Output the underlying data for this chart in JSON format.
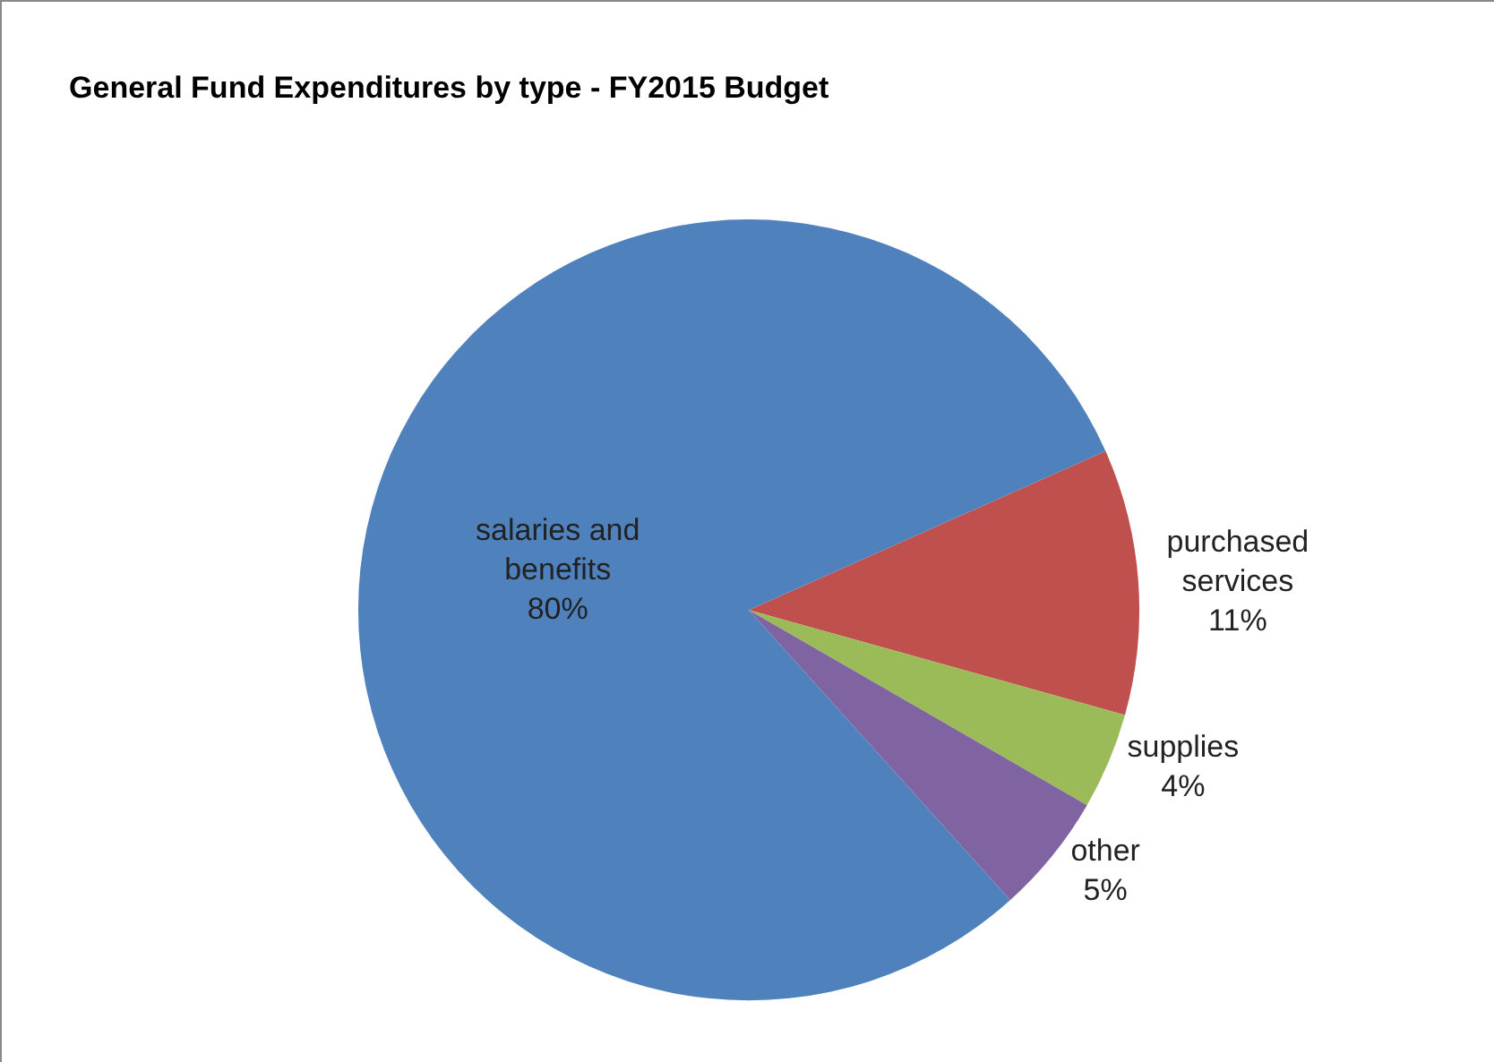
{
  "chart_data": {
    "type": "pie",
    "title": "General Fund Expenditures by type - FY2015 Budget",
    "categories": [
      "purchased services",
      "supplies",
      "other",
      "salaries and benefits"
    ],
    "values": [
      11,
      4,
      5,
      80
    ],
    "colors": [
      "#c0504d",
      "#9bbb59",
      "#8064a2",
      "#4f81bd"
    ],
    "value_labels": [
      "11%",
      "4%",
      "5%",
      "80%"
    ],
    "legend": false
  }
}
